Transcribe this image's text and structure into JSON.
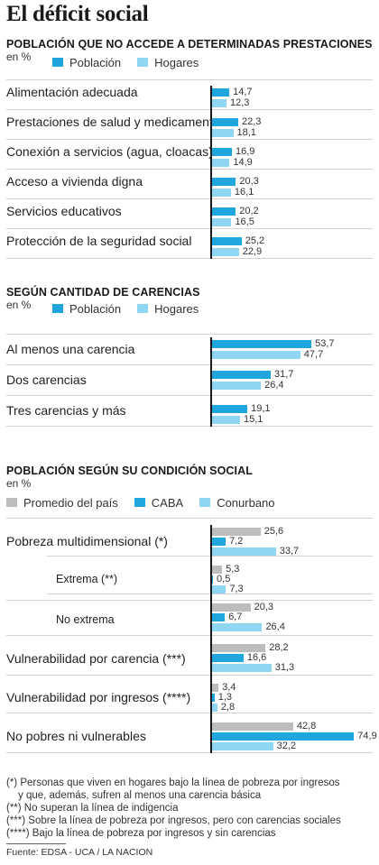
{
  "title": "El déficit social",
  "colors": {
    "poblacion": "#1fa6dc",
    "hogares": "#8fd6f2",
    "promedio": "#bdbdbd",
    "caba": "#1fa6dc",
    "conurbano": "#8fd6f2"
  },
  "sections": [
    {
      "title": "POBLACIÓN QUE NO ACCEDE A DETERMINADAS PRESTACIONES",
      "unit": "en %",
      "legend": [
        "Población",
        "Hogares"
      ],
      "footnote_labels": []
    },
    {
      "title": "SEGÚN CANTIDAD DE CARENCIAS",
      "unit": "en %",
      "legend": [
        "Población",
        "Hogares"
      ]
    },
    {
      "title": "POBLACIÓN SEGÚN SU CONDICIÓN SOCIAL",
      "unit": "en %",
      "legend": [
        "Promedio del país",
        "CABA",
        "Conurbano"
      ]
    }
  ],
  "chart_data": [
    {
      "type": "bar",
      "orientation": "horizontal",
      "title": "POBLACIÓN QUE NO ACCEDE A DETERMINADAS PRESTACIONES",
      "unit": "en %",
      "categories": [
        "Alimentación adecuada",
        "Prestaciones de salud y medicamentos",
        "Conexión a servicios (agua, cloacas)",
        "Acceso a vivienda digna",
        "Servicios educativos",
        "Protección de la seguridad social"
      ],
      "series": [
        {
          "name": "Población",
          "values": [
            14.7,
            22.3,
            16.9,
            20.3,
            20.2,
            25.2
          ],
          "labels": [
            "14,7",
            "22,3",
            "16,9",
            "20,3",
            "20,2",
            "25,2"
          ]
        },
        {
          "name": "Hogares",
          "values": [
            12.3,
            18.1,
            14.9,
            16.1,
            16.5,
            22.9
          ],
          "labels": [
            "12,3",
            "18,1",
            "14,9",
            "16,1",
            "16,5",
            "22,9"
          ]
        }
      ]
    },
    {
      "type": "bar",
      "orientation": "horizontal",
      "title": "SEGÚN CANTIDAD DE CARENCIAS",
      "unit": "en %",
      "categories": [
        "Al menos una carencia",
        "Dos carencias",
        "Tres carencias y más"
      ],
      "series": [
        {
          "name": "Población",
          "values": [
            53.7,
            31.7,
            19.1
          ],
          "labels": [
            "53,7",
            "31,7",
            "19,1"
          ]
        },
        {
          "name": "Hogares",
          "values": [
            47.7,
            26.4,
            15.1
          ],
          "labels": [
            "47,7",
            "26,4",
            "15,1"
          ]
        }
      ]
    },
    {
      "type": "bar",
      "orientation": "horizontal",
      "title": "POBLACIÓN SEGÚN SU CONDICIÓN SOCIAL",
      "unit": "en %",
      "categories": [
        "Pobreza multidimensional (*)",
        "Extrema (**)",
        "No extrema",
        "Vulnerabilidad por carencia (***)",
        "Vulnerabilidad por ingresos (****)",
        "No pobres ni vulnerables"
      ],
      "series": [
        {
          "name": "Promedio del país",
          "values": [
            25.6,
            5.3,
            20.3,
            28.2,
            3.4,
            42.8
          ],
          "labels": [
            "25,6",
            "5,3",
            "20,3",
            "28,2",
            "3,4",
            "42,8"
          ]
        },
        {
          "name": "CABA",
          "values": [
            7.2,
            0.5,
            6.7,
            16.6,
            1.3,
            74.9
          ],
          "labels": [
            "7,2",
            "0,5",
            "6,7",
            "16,6",
            "1,3",
            "74,9"
          ]
        },
        {
          "name": "Conurbano",
          "values": [
            33.7,
            7.3,
            26.4,
            31.3,
            2.8,
            32.2
          ],
          "labels": [
            "33,7",
            "7,3",
            "26,4",
            "31,3",
            "2,8",
            "32,2"
          ]
        }
      ]
    }
  ],
  "footnotes": [
    "(*) Personas que viven en hogares bajo la línea de pobreza por ingresos",
    "y que, además, sufren al menos una carencia básica",
    "(**) No superan la línea de indigencia",
    "(***) Sobre la línea de pobreza por ingresos, pero con carencias sociales",
    "(****) Bajo la línea de pobreza por ingresos  y sin carencias"
  ],
  "source": "Fuente: EDSA - UCA / LA NACION"
}
